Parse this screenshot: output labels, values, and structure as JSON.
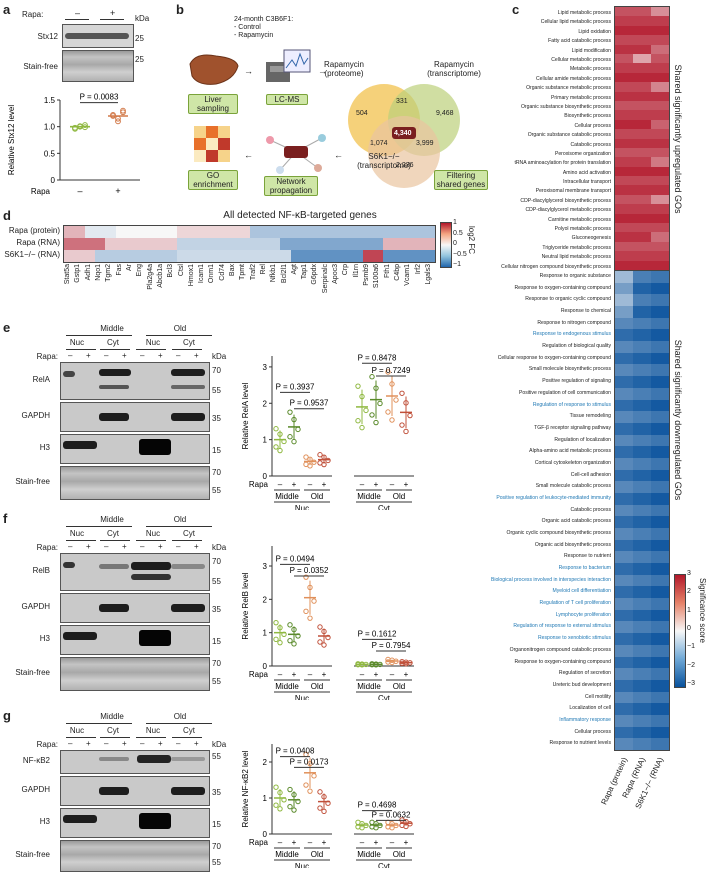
{
  "panels": {
    "a": "a",
    "b": "b",
    "c": "c",
    "d": "d",
    "e": "e",
    "f": "f",
    "g": "g"
  },
  "common": {
    "kda": "kDa",
    "rapa": "Rapa",
    "rapa_colon": "Rapa:",
    "minus": "–",
    "plus": "+",
    "stainfree": "Stain-free",
    "middle": "Middle",
    "old": "Old",
    "nuc": "Nuc",
    "cyt": "Cyt"
  },
  "panel_a": {
    "blot_labels": [
      "Stx12",
      "Stain-free"
    ],
    "kda_marks": [
      "25",
      "25"
    ],
    "chart_data": {
      "type": "scatter",
      "ylabel": "Relative Stx12 level",
      "categories": [
        "–",
        "+"
      ],
      "yticks": [
        "0",
        "0.5",
        "1.0",
        "1.5"
      ],
      "ylim": [
        0,
        1.5
      ],
      "annotation": "P = 0.0083",
      "series": [
        {
          "values": [
            0.98,
            1.0,
            1.03,
            0.96,
            1.01,
            0.99
          ]
        },
        {
          "values": [
            1.2,
            1.15,
            1.3,
            1.22,
            1.1,
            1.27
          ]
        }
      ],
      "means": [
        1.0,
        1.2
      ]
    }
  },
  "panel_b": {
    "mouse_text": [
      "24-month C3B6F1:",
      "- Control",
      "- Rapamycin"
    ],
    "steps": [
      "Liver sampling",
      "LC-MS",
      "Filtering shared genes",
      "Network propagation",
      "GO enrichment"
    ],
    "venn_labels": [
      "Rapamycin (proteome)",
      "Rapamycin (transcriptome)",
      "S6K1−/− (transcriptome)"
    ],
    "venn_numbers": [
      "504",
      "331",
      "9,468",
      "4,340",
      "1,074",
      "3,999",
      "2,236"
    ],
    "center_badge": "4,340 genes"
  },
  "panel_c": {
    "up_title": "Shared significantly upregulated GOs",
    "down_title": "Shared significantly downregulated GOs",
    "up_terms": [
      "Lipid metabolic process",
      "Cellular lipid metabolic process",
      "Lipid oxidation",
      "Fatty acid catabolic process",
      "Lipid modification",
      "Cellular metabolic process",
      "Metabolic process",
      "Cellular amide metabolic process",
      "Organic substance metabolic process",
      "Primary metabolic process",
      "Organic substance biosynthetic process",
      "Biosynthetic process",
      "Cellular process",
      "Organic substance catabolic process",
      "Catabolic process",
      "Peroxisome organization",
      "tRNA aminoacylation for protein translation",
      "Amino acid activation",
      "Intracellular transport",
      "Peroxisomal membrane transport",
      "CDP-diacylglycerol biosynthetic process",
      "CDP-diacylglycerol metabolic process",
      "Carnitine metabolic process",
      "Polyol metabolic process",
      "Gluconeogenesis",
      "Triglyceride metabolic process",
      "Neutral lipid metabolic process",
      "Cellular nitrogen compound biosynthetic process"
    ],
    "down_terms": [
      "Response to organic substance",
      "Response to oxygen-containing compound",
      "Response to organic cyclic compound",
      "Response to chemical",
      "Response to nitrogen compound",
      "Response to endogenous stimulus",
      "Regulation of biological quality",
      "Cellular response to oxygen-containing compound",
      "Small molecule biosynthetic process",
      "Positive regulation of signaling",
      "Positive regulation of cell communication",
      "Regulation of response to stimulus",
      "Tissue remodeling",
      "TGF-β receptor signaling pathway",
      "Regulation of localization",
      "Alpha-amino acid metabolic process",
      "Cortical cytoskeleton organization",
      "Cell-cell adhesion",
      "Small molecule catabolic process",
      "Positive regulation of leukocyte-mediated immunity",
      "Catabolic process",
      "Organic acid catabolic process",
      "Organic cyclic compound biosynthetic process",
      "Organic acid biosynthetic process",
      "Response to nutrient",
      "Response to bacterium",
      "Biological process involved in interspecies interaction",
      "Myeloid cell differentiation",
      "Regulation of T cell proliferation",
      "Lymphocyte proliferation",
      "Regulation of response to external stimulus",
      "Response to xenobiotic stimulus",
      "Organonitrogen compound catabolic process",
      "Response to oxygen-containing compound",
      "Regulation of secretion",
      "Ureteric bud development",
      "Cell motility",
      "Localization of cell",
      "Inflammatory response",
      "Cellular process",
      "Response to nutrient levels"
    ],
    "down_highlight": [
      5,
      11,
      19,
      25,
      26,
      27,
      28,
      29,
      30,
      31,
      38
    ],
    "columns": [
      "Rapa (protein)",
      "Rapa (RNA)",
      "S6K1−/− (RNA)"
    ],
    "legend_title": "Significance score",
    "legend_ticks": [
      "3",
      "2",
      "1",
      "0",
      "−1",
      "−2",
      "−3"
    ],
    "colors": {
      "up": "#b2182b",
      "down": "#08519c",
      "mid": "#f7f7f7",
      "link": "#1f78b4"
    }
  },
  "panel_d": {
    "title": "All detected NF-κB-targeted genes",
    "rows": [
      "Rapa (protein)",
      "Rapa (RNA)",
      "S6K1−/− (RNA)"
    ],
    "genes": [
      "Stat5a",
      "Gstp1",
      "Adh1",
      "Nqo1",
      "Tgm2",
      "Fas",
      "Ar",
      "Eng",
      "Pla2g4a",
      "Abcb1a",
      "Bcl3",
      "Ctsl",
      "Hmox1",
      "Icam1",
      "Onm1",
      "Cd74",
      "Bax",
      "Tpmt",
      "Traf2",
      "Rel",
      "Nfkb1",
      "Bcl2l1",
      "Agt",
      "Tap1",
      "G6pdx",
      "Serpinalc",
      "Apoc3",
      "Crp",
      "Il1rn",
      "Psmb9",
      "S100a6",
      "Fth1",
      "C4bp",
      "Vcam1",
      "Irf2",
      "Lgals3"
    ],
    "legend_title": "log2 FC",
    "legend_ticks": [
      "1",
      "0.5",
      "0",
      "−0.5",
      "−1"
    ]
  },
  "panel_e": {
    "blot_labels": [
      "RelA",
      "GAPDH",
      "H3",
      "Stain-free"
    ],
    "kda_marks": [
      "70",
      "55",
      "35",
      "15",
      "70",
      "55"
    ],
    "chart_data": {
      "type": "scatter",
      "ylabel": "Relative RelA level",
      "categories": [
        "Middle –",
        "Middle +",
        "Old –",
        "Old +",
        "Middle –",
        "Middle +",
        "Old –",
        "Old +"
      ],
      "yticks": [
        "0",
        "1",
        "2",
        "3"
      ],
      "ylim": [
        0,
        3.3
      ],
      "annotations": [
        "P = 0.3937",
        "P = 0.9537",
        "P = 0.8478",
        "P = 0.7249"
      ],
      "means": [
        1.0,
        1.35,
        0.4,
        0.45,
        1.9,
        2.1,
        2.2,
        1.75
      ]
    }
  },
  "panel_f": {
    "blot_labels": [
      "RelB",
      "GAPDH",
      "H3",
      "Stain-free"
    ],
    "kda_marks": [
      "70",
      "55",
      "35",
      "15",
      "70",
      "55"
    ],
    "chart_data": {
      "type": "scatter",
      "ylabel": "Relative RelB level",
      "categories": [
        "Middle –",
        "Middle +",
        "Old –",
        "Old +",
        "Middle –",
        "Middle +",
        "Old –",
        "Old +"
      ],
      "yticks": [
        "0",
        "1",
        "2",
        "3"
      ],
      "ylim": [
        0,
        3.6
      ],
      "annotations": [
        "P = 0.0494",
        "P = 0.0352",
        "P = 0.1612",
        "P = 0.7954"
      ],
      "means": [
        1.0,
        0.95,
        2.05,
        0.9,
        0.05,
        0.05,
        0.15,
        0.1
      ]
    }
  },
  "panel_g": {
    "blot_labels": [
      "NF-κB2",
      "GAPDH",
      "H3",
      "Stain-free"
    ],
    "kda_marks": [
      "55",
      "35",
      "15",
      "70",
      "55"
    ],
    "chart_data": {
      "type": "scatter",
      "ylabel": "Relative NF-κB2 level",
      "categories": [
        "Middle –",
        "Middle +",
        "Old –",
        "Old +",
        "Middle –",
        "Middle +",
        "Old –",
        "Old +"
      ],
      "yticks": [
        "0",
        "1",
        "2"
      ],
      "ylim": [
        0,
        2.5
      ],
      "annotations": [
        "P = 0.0408",
        "P = 0.0173",
        "P = 0.4698",
        "P = 0.0632"
      ],
      "means": [
        1.0,
        0.95,
        1.7,
        0.9,
        0.25,
        0.25,
        0.25,
        0.3
      ]
    }
  }
}
